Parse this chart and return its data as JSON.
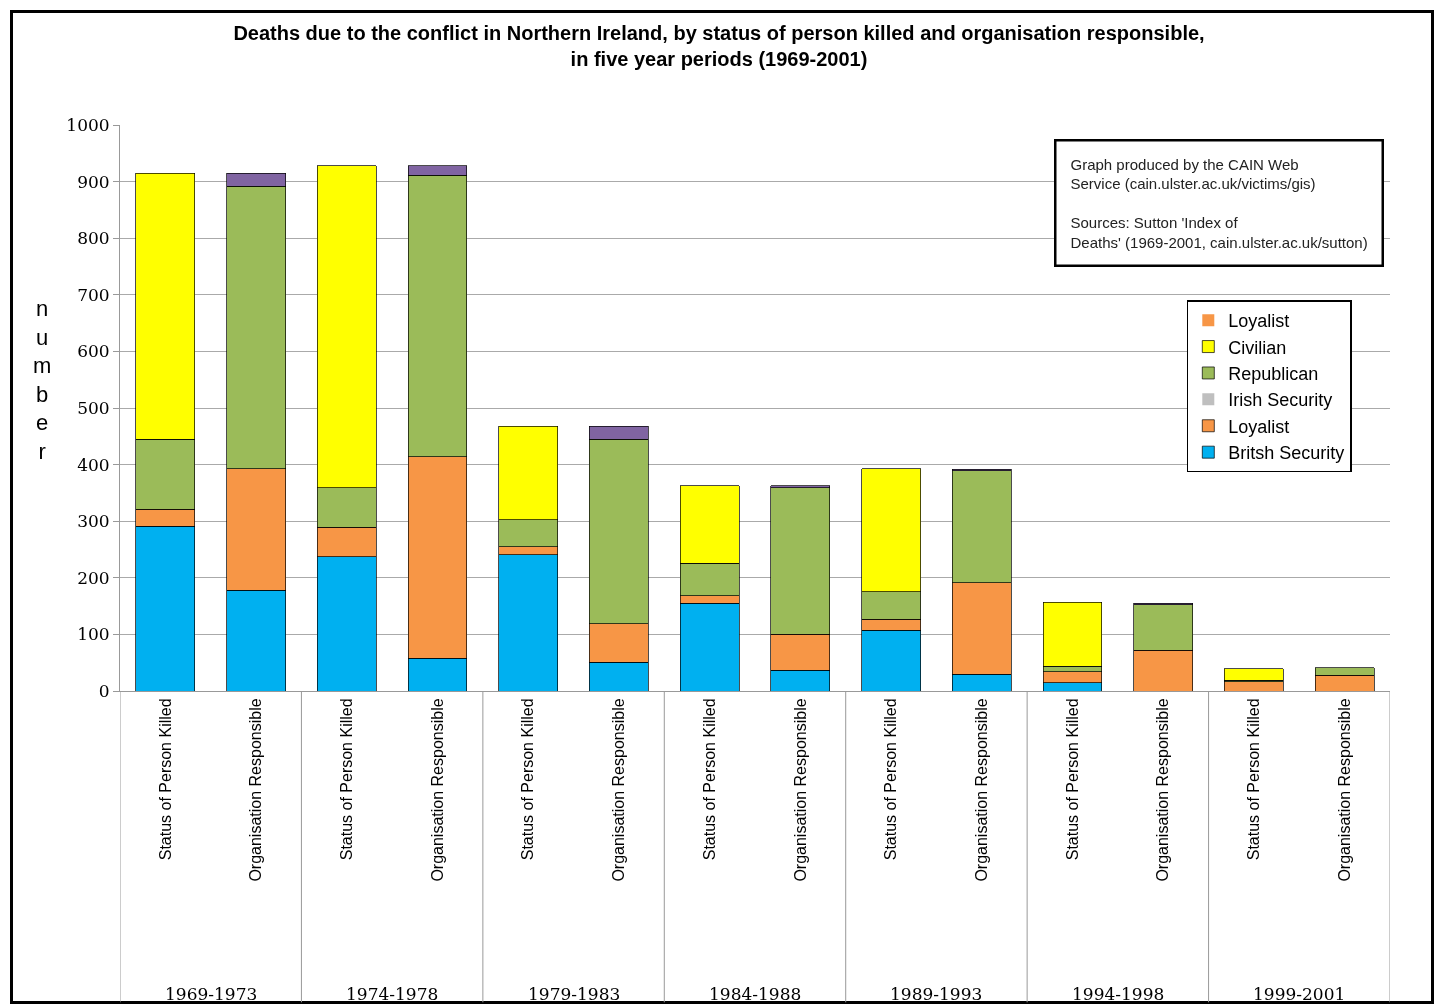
{
  "chart_data": {
    "type": "bar",
    "stacked": true,
    "title": "Deaths due to the conflict in Northern Ireland, by status of person killed and organisation responsible, in five year periods (1969-2001)",
    "ylabel": "number",
    "categories": [
      "Status of Person Killed",
      "Organisation Responsible",
      "Status of Person Killed",
      "Organisation Responsible",
      "Status of Person Killed",
      "Organisation Responsible",
      "Status of Person Killed",
      "Organisation Responsible",
      "Status of Person Killed",
      "Organisation Responsible",
      "Status of Person Killed",
      "Organisation Responsible",
      "Status of Person Killed",
      "Organisation Responsible"
    ],
    "annotations": [
      "1969-1973",
      "1974-1978",
      "1979-1983",
      "1984-1988",
      "1989-1993",
      "1994-1998",
      "1999-2001",
      "Graph produced by the CAIN Web Service (cain.ulster.ac.uk/victims/gis)",
      "Sources: Sutton 'Index of Deaths' (1969-2001, cain.ulster.ac.uk/sutton)"
    ],
    "series": [
      {
        "name": "Britsh Security",
        "color": "#00b0f0",
        "values": [
          291,
          178,
          237,
          58,
          241,
          51,
          155,
          37,
          107,
          30,
          15,
          null,
          0,
          0
        ]
      },
      {
        "name": "Loyalist",
        "color": "#f79646",
        "values": [
          30,
          215,
          52,
          356,
          14,
          68,
          13,
          63,
          20,
          161,
          19,
          72,
          16,
          28
        ]
      },
      {
        "name": "Irish Security",
        "color": "#bfbfbf",
        "values": [
          0,
          0,
          0,
          0,
          0,
          0,
          0,
          0,
          0,
          0,
          0,
          0,
          0,
          0
        ]
      },
      {
        "name": "Republican",
        "color": "#9bbb59",
        "values": [
          124,
          499,
          70,
          497,
          48,
          326,
          58,
          259,
          48,
          198,
          10,
          80,
          3,
          13
        ]
      },
      {
        "name": "Civilian",
        "color": "#ffff00",
        "values": [
          470,
          null,
          569,
          null,
          165,
          null,
          137,
          null,
          218,
          null,
          113,
          null,
          20,
          null
        ]
      },
      {
        "color": "#8064a2",
        "values": [
          null,
          23,
          null,
          17,
          null,
          23,
          null,
          4,
          null,
          3,
          null,
          3,
          null,
          null
        ]
      },
      {
        "name": "Loyalist",
        "color": "#f79646",
        "values": [
          0,
          0,
          0,
          0,
          0,
          0,
          0,
          0,
          0,
          0,
          0,
          0,
          0,
          0
        ]
      }
    ],
    "ylim": [
      0,
      1000
    ],
    "yticks": [
      0,
      100,
      200,
      300,
      400,
      500,
      600,
      700,
      800,
      900,
      1000
    ],
    "grid": "y",
    "legend": "right"
  }
}
